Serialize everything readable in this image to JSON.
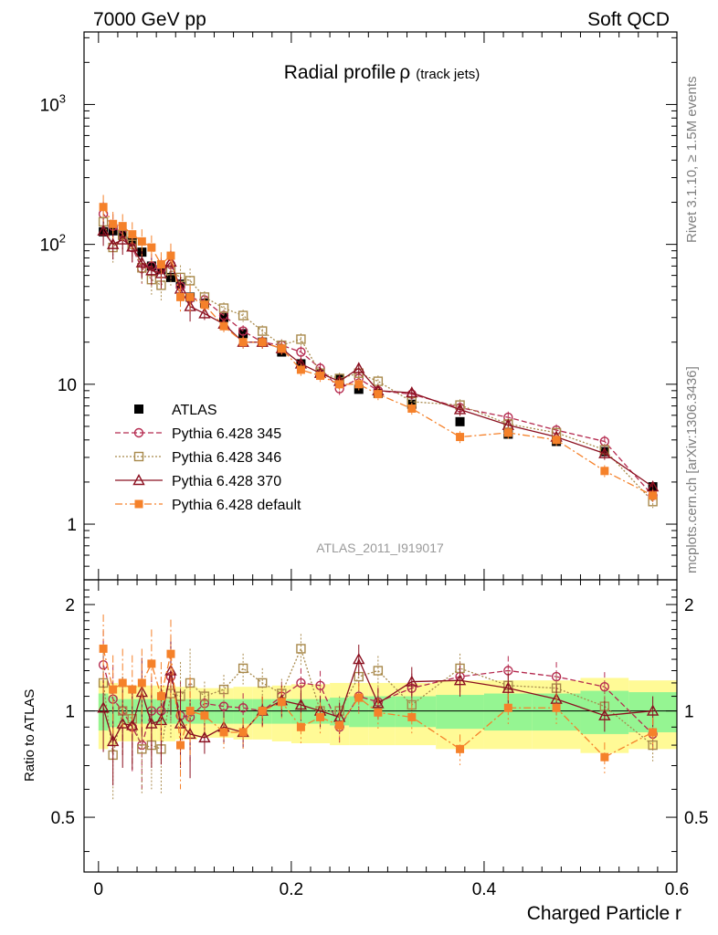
{
  "header": {
    "left": "7000 GeV pp",
    "right": "Soft QCD"
  },
  "side": {
    "rivet": "Rivet 3.1.10, ≥ 1.5M events",
    "mcplots": "mcplots.cern.ch [arXiv:1306.3436]"
  },
  "chart_data": [
    {
      "type": "scatter",
      "panel": "main",
      "title": "Radial profile",
      "title_symbol": "ρ",
      "title_suffix": "(track jets)",
      "analysis": "ATLAS_2011_I919017",
      "xlabel": "Charged Particle r",
      "ylabel": "",
      "yscale": "log",
      "xlim": [
        -0.015,
        0.6
      ],
      "ylim": [
        0.4,
        3300
      ],
      "y_tick_labels": [
        "1",
        "10",
        "10^2",
        "10^3"
      ],
      "legend": {
        "placement": "left",
        "entries": [
          "ATLAS",
          "Pythia 6.428 345",
          "Pythia 6.428 346",
          "Pythia 6.428 370",
          "Pythia 6.428 default"
        ]
      },
      "x": [
        0.005,
        0.015,
        0.025,
        0.035,
        0.045,
        0.055,
        0.065,
        0.075,
        0.085,
        0.095,
        0.11,
        0.13,
        0.15,
        0.17,
        0.19,
        0.21,
        0.23,
        0.25,
        0.27,
        0.29,
        0.325,
        0.375,
        0.425,
        0.475,
        0.525,
        0.575
      ],
      "series": [
        {
          "name": "ATLAS",
          "color": "#000000",
          "marker": "filled-square",
          "line": "none",
          "values": [
            123,
            125,
            117,
            105,
            88,
            70,
            66,
            58,
            52,
            42,
            38,
            30,
            23,
            20,
            17,
            14,
            12,
            11,
            9.2,
            8.6,
            7.2,
            5.4,
            4.4,
            3.9,
            3.3,
            1.85
          ]
        },
        {
          "name": "Pythia 6.428 345",
          "color": "#b52a4f",
          "marker": "open-circle",
          "line": "dashed",
          "values": [
            165,
            135,
            118,
            95,
            67,
            70,
            66,
            72,
            50,
            41,
            40,
            31,
            24,
            20,
            19,
            17,
            13,
            9.3,
            11,
            9,
            8.5,
            6.8,
            5.8,
            4.7,
            3.9,
            1.6
          ]
        },
        {
          "name": "Pythia 6.428 346",
          "color": "#a8894b",
          "marker": "open-square",
          "line": "dotted",
          "values": [
            145,
            95,
            118,
            100,
            68,
            56,
            51,
            65,
            58,
            55,
            42,
            35,
            31,
            24,
            19,
            21,
            12,
            11,
            12,
            10.5,
            7.5,
            7.1,
            5.2,
            4.5,
            3.4,
            1.45
          ]
        },
        {
          "name": "Pythia 6.428 370",
          "color": "#8b1020",
          "marker": "open-triangle",
          "line": "solid",
          "values": [
            125,
            100,
            108,
            96,
            74,
            65,
            62,
            75,
            48,
            36,
            32,
            27,
            20,
            20,
            18,
            14,
            12,
            10.5,
            13,
            9,
            8.7,
            6.6,
            5.1,
            4.2,
            3.2,
            1.85
          ]
        },
        {
          "name": "Pythia 6.428 default",
          "color": "#f5812a",
          "marker": "filled-square",
          "line": "dashdot",
          "values": [
            185,
            140,
            135,
            118,
            105,
            95,
            72,
            83,
            42,
            42,
            37,
            26,
            20,
            20,
            18,
            12.7,
            11.5,
            10,
            10,
            8.5,
            6.7,
            4.2,
            4.5,
            4.0,
            2.4,
            1.6
          ]
        }
      ]
    },
    {
      "type": "scatter",
      "panel": "ratio",
      "ylabel": "Ratio to ATLAS",
      "xlabel": "Charged Particle r",
      "xlim": [
        -0.015,
        0.6
      ],
      "ylim": [
        0.35,
        2.35
      ],
      "yscale": "log",
      "y_tick_labels": [
        "0.5",
        "1",
        "2"
      ],
      "x_tick_labels": [
        "0",
        "0.2",
        "0.4",
        "0.6"
      ],
      "bands": {
        "inner_color": "#95f592",
        "outer_color": "#fffa96"
      },
      "x": [
        0.005,
        0.015,
        0.025,
        0.035,
        0.045,
        0.055,
        0.065,
        0.075,
        0.085,
        0.095,
        0.11,
        0.13,
        0.15,
        0.17,
        0.19,
        0.21,
        0.23,
        0.25,
        0.27,
        0.29,
        0.325,
        0.375,
        0.425,
        0.475,
        0.525,
        0.575
      ],
      "series": [
        {
          "name": "Pythia 6.428 345",
          "values": [
            1.35,
            1.08,
            1.0,
            0.9,
            0.8,
            1.0,
            1.0,
            1.25,
            0.97,
            0.96,
            1.05,
            1.03,
            1.02,
            1.0,
            1.1,
            1.2,
            1.18,
            0.9,
            1.1,
            1.06,
            1.16,
            1.25,
            1.3,
            1.25,
            1.17,
            0.86
          ]
        },
        {
          "name": "Pythia 6.428 346",
          "values": [
            1.2,
            0.75,
            1.0,
            0.95,
            0.78,
            0.8,
            0.78,
            1.12,
            1.1,
            1.2,
            1.1,
            1.15,
            1.32,
            1.2,
            1.12,
            1.5,
            1.0,
            1.0,
            1.25,
            1.3,
            1.04,
            1.32,
            1.18,
            1.16,
            1.03,
            0.8
          ]
        },
        {
          "name": "Pythia 6.428 370",
          "values": [
            1.02,
            0.82,
            0.92,
            0.91,
            1.13,
            0.92,
            0.94,
            1.3,
            0.92,
            0.86,
            0.84,
            0.9,
            0.87,
            1.0,
            1.07,
            1.04,
            1.0,
            0.96,
            1.4,
            1.05,
            1.21,
            1.22,
            1.16,
            1.08,
            0.97,
            1.0
          ]
        },
        {
          "name": "Pythia 6.428 default",
          "values": [
            1.5,
            1.15,
            1.2,
            1.15,
            1.2,
            1.36,
            1.1,
            1.45,
            0.8,
            1.0,
            0.97,
            0.87,
            0.87,
            1.0,
            1.06,
            0.9,
            0.96,
            0.91,
            1.09,
            0.99,
            0.96,
            0.78,
            1.02,
            1.02,
            0.74,
            0.87
          ]
        }
      ]
    }
  ]
}
